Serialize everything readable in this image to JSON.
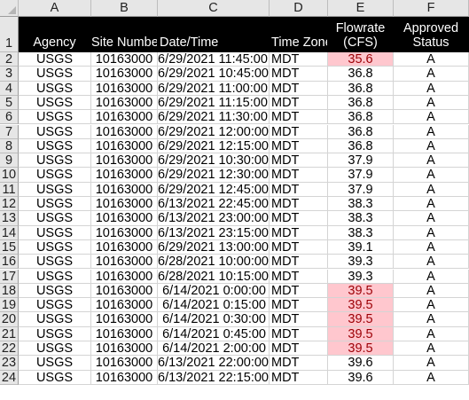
{
  "column_letters": [
    "A",
    "B",
    "C",
    "D",
    "E",
    "F"
  ],
  "header": {
    "row_number": "1",
    "agency": "Agency",
    "site_number": "Site Number",
    "datetime": "Date/Time",
    "time_zone": "Time Zone",
    "flowrate_line1": "Flowrate",
    "flowrate_line2": "(CFS)",
    "approved_line1": "Approved",
    "approved_line2": "Status"
  },
  "highlight_colors": {
    "fill": "#ffc7ce",
    "text": "#9c0006"
  },
  "rows": [
    {
      "n": "2",
      "agency": "USGS",
      "site": "10163000",
      "dt": "6/29/2021 11:45:00",
      "tz": "MDT",
      "flow": "35.6",
      "status": "A",
      "highlight": true
    },
    {
      "n": "3",
      "agency": "USGS",
      "site": "10163000",
      "dt": "6/29/2021 10:45:00",
      "tz": "MDT",
      "flow": "36.8",
      "status": "A",
      "highlight": false
    },
    {
      "n": "4",
      "agency": "USGS",
      "site": "10163000",
      "dt": "6/29/2021 11:00:00",
      "tz": "MDT",
      "flow": "36.8",
      "status": "A",
      "highlight": false
    },
    {
      "n": "5",
      "agency": "USGS",
      "site": "10163000",
      "dt": "6/29/2021 11:15:00",
      "tz": "MDT",
      "flow": "36.8",
      "status": "A",
      "highlight": false
    },
    {
      "n": "6",
      "agency": "USGS",
      "site": "10163000",
      "dt": "6/29/2021 11:30:00",
      "tz": "MDT",
      "flow": "36.8",
      "status": "A",
      "highlight": false
    },
    {
      "n": "7",
      "agency": "USGS",
      "site": "10163000",
      "dt": "6/29/2021 12:00:00",
      "tz": "MDT",
      "flow": "36.8",
      "status": "A",
      "highlight": false
    },
    {
      "n": "8",
      "agency": "USGS",
      "site": "10163000",
      "dt": "6/29/2021 12:15:00",
      "tz": "MDT",
      "flow": "36.8",
      "status": "A",
      "highlight": false
    },
    {
      "n": "9",
      "agency": "USGS",
      "site": "10163000",
      "dt": "6/29/2021 10:30:00",
      "tz": "MDT",
      "flow": "37.9",
      "status": "A",
      "highlight": false
    },
    {
      "n": "10",
      "agency": "USGS",
      "site": "10163000",
      "dt": "6/29/2021 12:30:00",
      "tz": "MDT",
      "flow": "37.9",
      "status": "A",
      "highlight": false
    },
    {
      "n": "11",
      "agency": "USGS",
      "site": "10163000",
      "dt": "6/29/2021 12:45:00",
      "tz": "MDT",
      "flow": "37.9",
      "status": "A",
      "highlight": false
    },
    {
      "n": "12",
      "agency": "USGS",
      "site": "10163000",
      "dt": "6/13/2021 22:45:00",
      "tz": "MDT",
      "flow": "38.3",
      "status": "A",
      "highlight": false
    },
    {
      "n": "13",
      "agency": "USGS",
      "site": "10163000",
      "dt": "6/13/2021 23:00:00",
      "tz": "MDT",
      "flow": "38.3",
      "status": "A",
      "highlight": false
    },
    {
      "n": "14",
      "agency": "USGS",
      "site": "10163000",
      "dt": "6/13/2021 23:15:00",
      "tz": "MDT",
      "flow": "38.3",
      "status": "A",
      "highlight": false
    },
    {
      "n": "15",
      "agency": "USGS",
      "site": "10163000",
      "dt": "6/29/2021 13:00:00",
      "tz": "MDT",
      "flow": "39.1",
      "status": "A",
      "highlight": false
    },
    {
      "n": "16",
      "agency": "USGS",
      "site": "10163000",
      "dt": "6/28/2021 10:00:00",
      "tz": "MDT",
      "flow": "39.3",
      "status": "A",
      "highlight": false
    },
    {
      "n": "17",
      "agency": "USGS",
      "site": "10163000",
      "dt": "6/28/2021 10:15:00",
      "tz": "MDT",
      "flow": "39.3",
      "status": "A",
      "highlight": false
    },
    {
      "n": "18",
      "agency": "USGS",
      "site": "10163000",
      "dt": "6/14/2021 0:00:00",
      "tz": "MDT",
      "flow": "39.5",
      "status": "A",
      "highlight": true
    },
    {
      "n": "19",
      "agency": "USGS",
      "site": "10163000",
      "dt": "6/14/2021 0:15:00",
      "tz": "MDT",
      "flow": "39.5",
      "status": "A",
      "highlight": true
    },
    {
      "n": "20",
      "agency": "USGS",
      "site": "10163000",
      "dt": "6/14/2021 0:30:00",
      "tz": "MDT",
      "flow": "39.5",
      "status": "A",
      "highlight": true
    },
    {
      "n": "21",
      "agency": "USGS",
      "site": "10163000",
      "dt": "6/14/2021 0:45:00",
      "tz": "MDT",
      "flow": "39.5",
      "status": "A",
      "highlight": true
    },
    {
      "n": "22",
      "agency": "USGS",
      "site": "10163000",
      "dt": "6/14/2021 2:00:00",
      "tz": "MDT",
      "flow": "39.5",
      "status": "A",
      "highlight": true
    },
    {
      "n": "23",
      "agency": "USGS",
      "site": "10163000",
      "dt": "6/13/2021 22:00:00",
      "tz": "MDT",
      "flow": "39.6",
      "status": "A",
      "highlight": false
    },
    {
      "n": "24",
      "agency": "USGS",
      "site": "10163000",
      "dt": "6/13/2021 22:15:00",
      "tz": "MDT",
      "flow": "39.6",
      "status": "A",
      "highlight": false
    }
  ]
}
